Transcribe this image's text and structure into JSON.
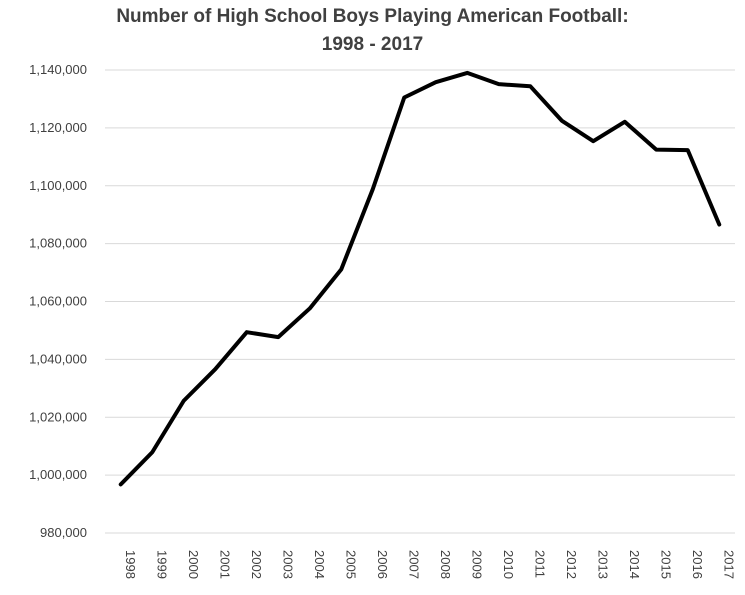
{
  "chart_data": {
    "type": "line",
    "title_line1": "Number of High School Boys Playing American Football:",
    "title_line2": "1998 - 2017",
    "xlabel": "",
    "ylabel": "",
    "ylim": [
      980000,
      1140000
    ],
    "yticks": [
      980000,
      1000000,
      1020000,
      1040000,
      1060000,
      1080000,
      1100000,
      1120000,
      1140000
    ],
    "ytick_labels": [
      "980,000",
      "1,000,000",
      "1,020,000",
      "1,040,000",
      "1,060,000",
      "1,080,000",
      "1,100,000",
      "1,120,000",
      "1,140,000"
    ],
    "categories": [
      "1998",
      "1999",
      "2000",
      "2001",
      "2002",
      "2003",
      "2004",
      "2005",
      "2006",
      "2007",
      "2008",
      "2009",
      "2010",
      "2011",
      "2012",
      "2013",
      "2014",
      "2015",
      "2016",
      "2017"
    ],
    "values": [
      996800,
      1007900,
      1025700,
      1036600,
      1049400,
      1047700,
      1057600,
      1071100,
      1098800,
      1130500,
      1135800,
      1139000,
      1135100,
      1134400,
      1122500,
      1115400,
      1122100,
      1112500,
      1112300,
      1086600
    ],
    "grid": true,
    "line_color": "#000000",
    "grid_color": "#d9d9d9"
  }
}
